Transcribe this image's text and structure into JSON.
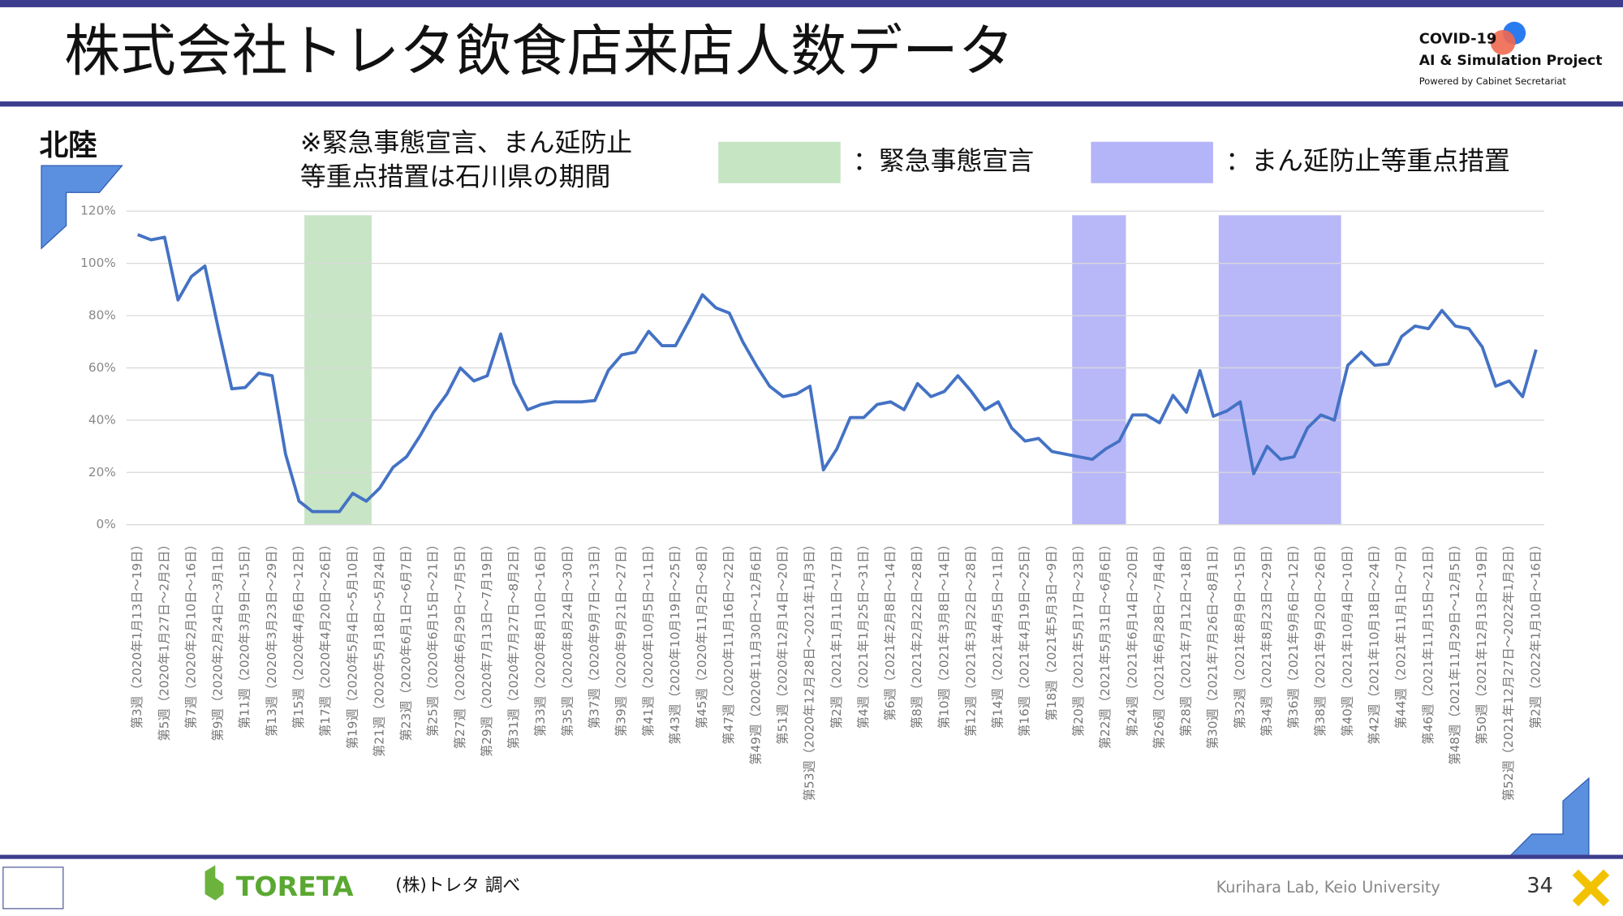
{
  "header": {
    "title": "株式会社トレタ飲食店来店人数データ",
    "logo_lines": [
      "COVID-19",
      "AI & Simulation Project",
      "Powered by Cabinet Secretariat"
    ]
  },
  "region": "北陸",
  "note": [
    "※緊急事態宣言、まん延防止",
    "等重点措置は石川県の期間"
  ],
  "chart_data": {
    "type": "line",
    "categories": [
      "第3週（2020年1月13日～19日）",
      null,
      "第5週（2020年1月27日～2月2日）",
      null,
      "第7週（2020年2月10日～16日）",
      null,
      "第9週（2020年2月24日～3月1日）",
      null,
      "第11週（2020年3月9日～15日）",
      null,
      "第13週（2020年3月23日～29日）",
      null,
      "第15週（2020年4月6日～12日）",
      null,
      "第17週（2020年4月20日～26日）",
      null,
      "第19週（2020年5月4日～5月10日）",
      null,
      "第21週（2020年5月18日～5月24日）",
      null,
      "第23週（2020年6月1日～6月7日）",
      null,
      "第25週（2020年6月15日～21日）",
      null,
      "第27週（2020年6月29日～7月5日）",
      null,
      "第29週（2020年7月13日～7月19日）",
      null,
      "第31週（2020年7月27日～8月2日）",
      null,
      "第33週（2020年8月10日～16日）",
      null,
      "第35週（2020年8月24日～30日）",
      null,
      "第37週（2020年9月7日～13日）",
      null,
      "第39週（2020年9月21日～27日）",
      null,
      "第41週（2020年10月5日～11日）",
      null,
      "第43週（2020年10月19日～25日）",
      null,
      "第45週（2020年11月2日～8日）",
      null,
      "第47週（2020年11月16日～22日）",
      null,
      "第49週（2020年11月30日～12月6日）",
      null,
      "第51週（2020年12月14日～20日）",
      null,
      "第53週（2020年12月28日～2021年1月3日）",
      null,
      "第2週（2021年1月11日～17日）",
      null,
      "第4週（2021年1月25日～31日）",
      null,
      "第6週（2021年2月8日～14日）",
      null,
      "第8週（2021年2月22日～28日）",
      null,
      "第10週（2021年3月8日～14日）",
      null,
      "第12週（2021年3月22日～28日）",
      null,
      "第14週（2021年4月5日～11日）",
      null,
      "第16週（2021年4月19日～25日）",
      null,
      "第18週（2021年5月3日～9日）",
      null,
      "第20週（2021年5月17日～23日）",
      null,
      "第22週（2021年5月31日～6月6日）",
      null,
      "第24週（2021年6月14日～20日）",
      null,
      "第26週（2021年6月28日～7月4日）",
      null,
      "第28週（2021年7月12日～18日）",
      null,
      "第30週（2021年7月26日～8月1日）",
      null,
      "第32週（2021年8月9日～15日）",
      null,
      "第34週（2021年8月23日～29日）",
      null,
      "第36週（2021年9月6日～12日）",
      null,
      "第38週（2021年9月20日～26日）",
      null,
      "第40週（2021年10月4日～10日）",
      null,
      "第42週（2021年10月18日～24日）",
      null,
      "第44週（2021年11月1日～7日）",
      null,
      "第46週（2021年11月15日～21日）",
      null,
      "第48週（2021年11月29日～12月5日）",
      null,
      "第50週（2021年12月13日～19日）",
      null,
      "第52週（2021年12月27日～2022年1月2日）",
      null,
      "第2週（2022年1月10日～16日）"
    ],
    "values": [
      111,
      109,
      110,
      86,
      95,
      99,
      75,
      52,
      52.5,
      58,
      57,
      27,
      9,
      5,
      5,
      5,
      12,
      9,
      14,
      22,
      26,
      34,
      43,
      50,
      60,
      55,
      57,
      73,
      54,
      44,
      46,
      47,
      47,
      47,
      47.5,
      59,
      65,
      66,
      74,
      68.5,
      68.5,
      78,
      88,
      83,
      81,
      70,
      61,
      53,
      49,
      50,
      53,
      21,
      29,
      41,
      41,
      46,
      47,
      44,
      54,
      49,
      51,
      57,
      51,
      44,
      47,
      37,
      32,
      33,
      28,
      27,
      26,
      25,
      29,
      32,
      42,
      42,
      39,
      49.5,
      43,
      59,
      41.5,
      43.5,
      47,
      19.5,
      30,
      25,
      26,
      37,
      42,
      40,
      61,
      66,
      61,
      61.5,
      72,
      76,
      75,
      82,
      76,
      75,
      68,
      53,
      55,
      49,
      67
    ],
    "color": "#4472c4",
    "ylim": [
      0,
      120
    ],
    "yticks": [
      {
        "value": 0,
        "label": "0%"
      },
      {
        "value": 20,
        "label": "20%"
      },
      {
        "value": 40,
        "label": "40%"
      },
      {
        "value": 60,
        "label": "60%"
      },
      {
        "value": 80,
        "label": "80%"
      },
      {
        "value": 100,
        "label": "100%"
      },
      {
        "value": 120,
        "label": "120%"
      }
    ],
    "grid": true,
    "bands": [
      {
        "name": "：緊急事態宣言",
        "color": "#c5e5c3",
        "ranges": [
          [
            12.4,
            17.4
          ]
        ]
      },
      {
        "name": "：まん延防止等重点措置",
        "color": "#b4b4f8",
        "ranges": [
          [
            69.5,
            73.5
          ],
          [
            80.4,
            89.5
          ]
        ]
      }
    ]
  },
  "footer": {
    "brand": "TORETA",
    "source": "(株)トレタ 調べ",
    "lab": "Kurihara Lab, Keio University",
    "page": "34"
  }
}
